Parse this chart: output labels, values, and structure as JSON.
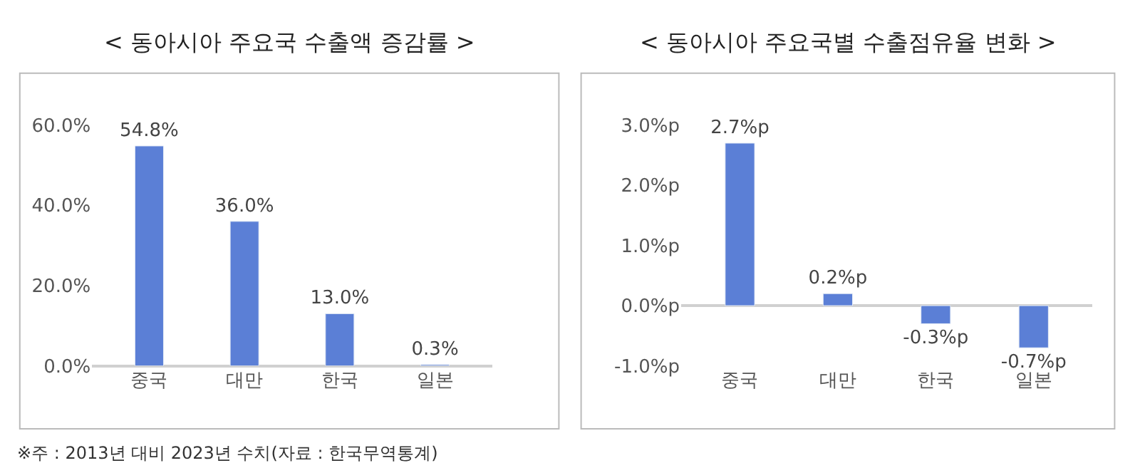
{
  "chart_data": [
    {
      "type": "bar",
      "title": "< 동아시아 주요국 수출액 증감률 >",
      "categories": [
        "중국",
        "대만",
        "한국",
        "일본"
      ],
      "values": [
        54.8,
        36.0,
        13.0,
        0.3
      ],
      "color": "#5b7fd6",
      "value_labels": [
        "54.8%",
        "36.0%",
        "13.0%",
        "0.3%"
      ],
      "ylim": [
        0,
        60
      ],
      "yticks": [
        {
          "value": 0,
          "label": "0.0%"
        },
        {
          "value": 20,
          "label": "20.0%"
        },
        {
          "value": 40,
          "label": "40.0%"
        },
        {
          "value": 60,
          "label": "60.0%"
        }
      ],
      "annotations": [
        "※주 : 2013년 대비 2023년 수치(자료 : 한국무역통계)"
      ]
    },
    {
      "type": "bar",
      "title": "< 동아시아 주요국별 수출점유율 변화 >",
      "categories": [
        "중국",
        "대만",
        "한국",
        "일본"
      ],
      "values": [
        2.7,
        0.2,
        -0.3,
        -0.7
      ],
      "color": "#5b7fd6",
      "value_labels": [
        "2.7%p",
        "0.2%p",
        "-0.3%p",
        "-0.7%p"
      ],
      "ylim": [
        -1,
        3
      ],
      "yticks": [
        {
          "value": -1,
          "label": "-1.0%p"
        },
        {
          "value": 0,
          "label": "0.0%p"
        },
        {
          "value": 1,
          "label": "1.0%p"
        },
        {
          "value": 2,
          "label": "2.0%p"
        },
        {
          "value": 3,
          "label": "3.0%p"
        }
      ]
    }
  ]
}
